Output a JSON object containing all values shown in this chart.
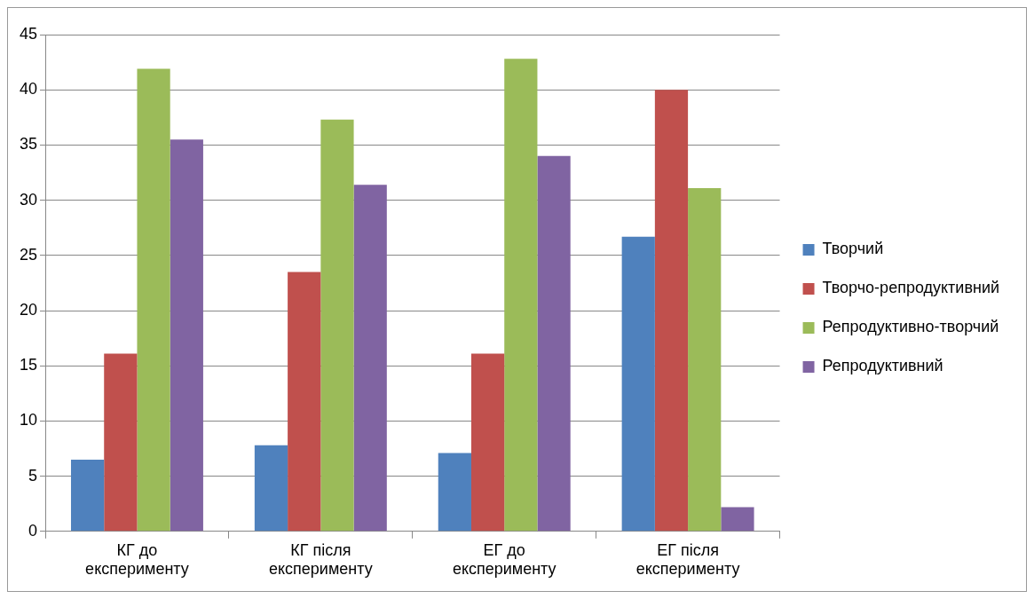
{
  "chart_data": {
    "type": "bar",
    "categories": [
      "КГ до експерименту",
      "КГ після експерименту",
      "ЕГ до експерименту",
      "ЕГ після експерименту"
    ],
    "series": [
      {
        "name": "Творчий",
        "color": "#4f81bd",
        "values": [
          6.5,
          7.8,
          7.1,
          26.7
        ]
      },
      {
        "name": "Творчо-репродуктивний",
        "color": "#c0504d",
        "values": [
          16.1,
          23.5,
          16.1,
          40
        ]
      },
      {
        "name": "Репродуктивно-творчий",
        "color": "#9bbb59",
        "values": [
          41.9,
          37.3,
          42.8,
          31.1
        ]
      },
      {
        "name": "Репродуктивний",
        "color": "#8064a2",
        "values": [
          35.5,
          31.4,
          34,
          2.2
        ]
      }
    ],
    "ylim": [
      0,
      45
    ],
    "yticks": [
      0,
      5,
      10,
      15,
      20,
      25,
      30,
      35,
      40,
      45
    ],
    "grid": "y",
    "legend": "right"
  }
}
